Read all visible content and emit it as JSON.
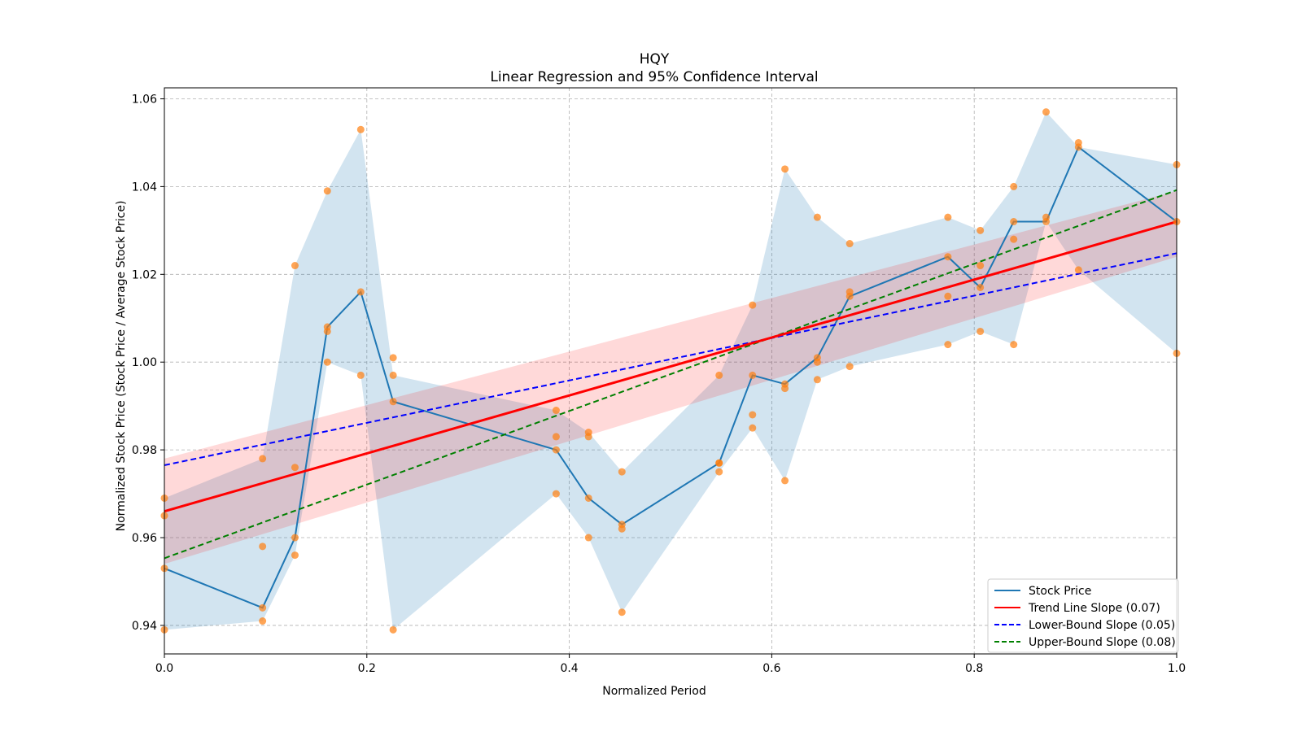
{
  "chart_data": {
    "type": "line",
    "title": "HQY",
    "subtitle": "Linear Regression and 95% Confidence Interval",
    "xlabel": "Normalized Period",
    "ylabel": "Normalized Stock Price (Stock Price / Average Stock Price)",
    "xlim": [
      0.0,
      1.0
    ],
    "ylim": [
      0.9335,
      1.0625
    ],
    "xticks": [
      0.0,
      0.2,
      0.4,
      0.6,
      0.8,
      1.0
    ],
    "xtick_labels": [
      "0.0",
      "0.2",
      "0.4",
      "0.6",
      "0.8",
      "1.0"
    ],
    "yticks": [
      0.94,
      0.96,
      0.98,
      1.0,
      1.02,
      1.04,
      1.06
    ],
    "ytick_labels": [
      "0.94",
      "0.96",
      "0.98",
      "1.00",
      "1.02",
      "1.04",
      "1.06"
    ],
    "grid": true,
    "colors": {
      "stock_line": "#1f77b4",
      "band": "#1f77b4",
      "points": "#ff7f0e",
      "trend": "#ff0000",
      "trend_ci": "#ff9999",
      "lower": "#0000ff",
      "upper": "#008000"
    },
    "series": [
      {
        "name": "Stock Price",
        "x": [
          0.0,
          0.097,
          0.129,
          0.161,
          0.194,
          0.226,
          0.387,
          0.419,
          0.452,
          0.548,
          0.581,
          0.613,
          0.645,
          0.677,
          0.774,
          0.806,
          0.839,
          0.871,
          0.903,
          1.0
        ],
        "y": [
          0.953,
          0.944,
          0.96,
          1.008,
          1.016,
          0.991,
          0.98,
          0.969,
          0.963,
          0.977,
          0.997,
          0.995,
          1.001,
          1.015,
          1.024,
          1.017,
          1.032,
          1.032,
          1.049,
          1.032
        ],
        "band_upper": [
          0.969,
          0.978,
          1.022,
          1.039,
          1.053,
          0.997,
          0.989,
          0.984,
          0.975,
          0.997,
          1.013,
          1.044,
          1.033,
          1.027,
          1.033,
          1.03,
          1.04,
          1.057,
          1.049,
          1.045
        ],
        "band_lower": [
          0.939,
          0.941,
          0.956,
          1.0,
          0.997,
          0.939,
          0.97,
          0.96,
          0.943,
          0.975,
          0.985,
          0.973,
          0.996,
          0.999,
          1.004,
          1.007,
          1.004,
          1.032,
          1.021,
          1.002
        ]
      },
      {
        "name": "Trend Line Slope (0.07)",
        "x": [
          0.0,
          1.0
        ],
        "y": [
          0.966,
          1.032
        ],
        "ci_upper": [
          0.978,
          1.039
        ],
        "ci_lower": [
          0.954,
          1.024
        ]
      },
      {
        "name": "Lower-Bound Slope (0.05)",
        "x": [
          0.0,
          1.0
        ],
        "y": [
          0.9765,
          1.0248
        ]
      },
      {
        "name": "Upper-Bound Slope (0.08)",
        "x": [
          0.0,
          1.0
        ],
        "y": [
          0.9553,
          1.0392
        ]
      }
    ],
    "scatter": {
      "x": [
        0.0,
        0.0,
        0.0,
        0.0,
        0.097,
        0.097,
        0.097,
        0.097,
        0.129,
        0.129,
        0.129,
        0.129,
        0.161,
        0.161,
        0.161,
        0.161,
        0.194,
        0.194,
        0.194,
        0.226,
        0.226,
        0.226,
        0.226,
        0.387,
        0.387,
        0.387,
        0.387,
        0.419,
        0.419,
        0.419,
        0.419,
        0.452,
        0.452,
        0.452,
        0.452,
        0.548,
        0.548,
        0.548,
        0.548,
        0.581,
        0.581,
        0.581,
        0.581,
        0.613,
        0.613,
        0.613,
        0.613,
        0.645,
        0.645,
        0.645,
        0.645,
        0.677,
        0.677,
        0.677,
        0.677,
        0.774,
        0.774,
        0.774,
        0.774,
        0.806,
        0.806,
        0.806,
        0.806,
        0.839,
        0.839,
        0.839,
        0.839,
        0.871,
        0.871,
        0.871,
        0.903,
        0.903,
        0.903,
        1.0,
        1.0,
        1.0
      ],
      "y": [
        0.969,
        0.965,
        0.953,
        0.939,
        0.978,
        0.958,
        0.944,
        0.941,
        1.022,
        0.976,
        0.96,
        0.956,
        1.039,
        1.008,
        1.007,
        1.0,
        1.053,
        1.016,
        0.997,
        1.001,
        0.997,
        0.991,
        0.939,
        0.989,
        0.983,
        0.98,
        0.97,
        0.984,
        0.983,
        0.969,
        0.96,
        0.975,
        0.963,
        0.962,
        0.943,
        0.997,
        0.977,
        0.977,
        0.975,
        1.013,
        0.997,
        0.988,
        0.985,
        1.044,
        0.995,
        0.994,
        0.973,
        1.033,
        1.001,
        1.0,
        0.996,
        1.027,
        1.016,
        1.015,
        0.999,
        1.033,
        1.024,
        1.015,
        1.004,
        1.03,
        1.022,
        1.017,
        1.007,
        1.04,
        1.032,
        1.028,
        1.004,
        1.057,
        1.033,
        1.032,
        1.05,
        1.049,
        1.021,
        1.045,
        1.032,
        1.002
      ]
    },
    "legend": {
      "position": "lower-right",
      "entries": [
        {
          "label": "Stock Price",
          "style": "solid",
          "color": "#1f77b4"
        },
        {
          "label": "Trend Line Slope (0.07)",
          "style": "solid",
          "color": "#ff0000"
        },
        {
          "label": "Lower-Bound Slope (0.05)",
          "style": "dashed",
          "color": "#0000ff"
        },
        {
          "label": "Upper-Bound Slope (0.08)",
          "style": "dashed",
          "color": "#008000"
        }
      ]
    }
  }
}
